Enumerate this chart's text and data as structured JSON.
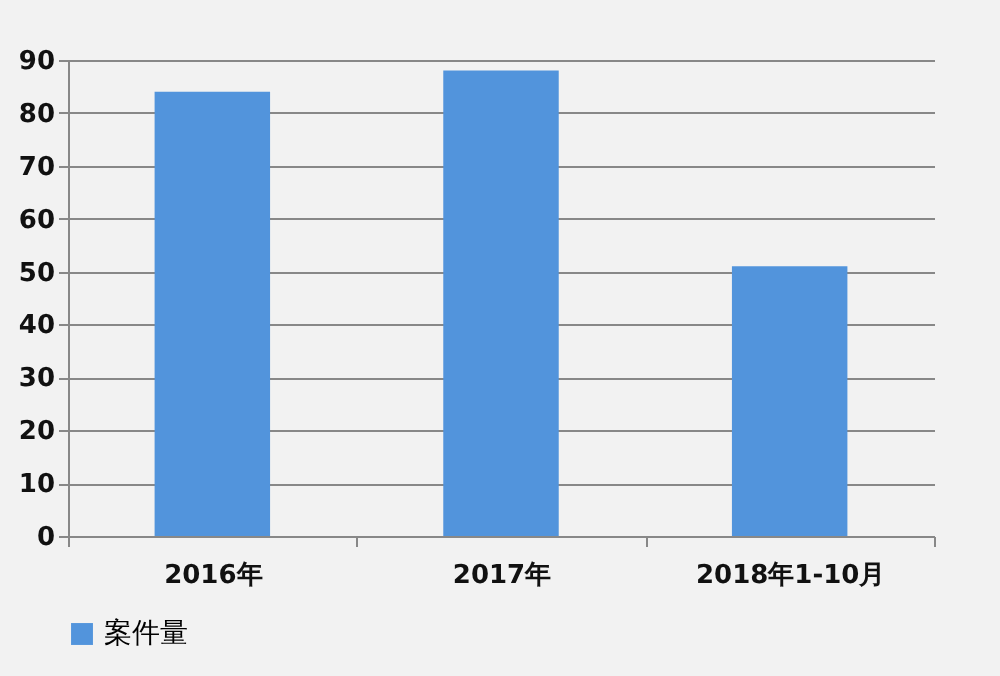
{
  "chart_data": {
    "type": "bar",
    "categories": [
      "2016年",
      "2017年",
      "2018年1-10月"
    ],
    "series": [
      {
        "name": "案件量",
        "color": "#5294dc",
        "values": [
          84,
          88,
          51
        ]
      }
    ],
    "ylim": [
      0,
      90
    ],
    "yticks": [
      0,
      10,
      20,
      30,
      40,
      50,
      60,
      70,
      80,
      90
    ],
    "grid": "y",
    "legend": "bottom"
  }
}
